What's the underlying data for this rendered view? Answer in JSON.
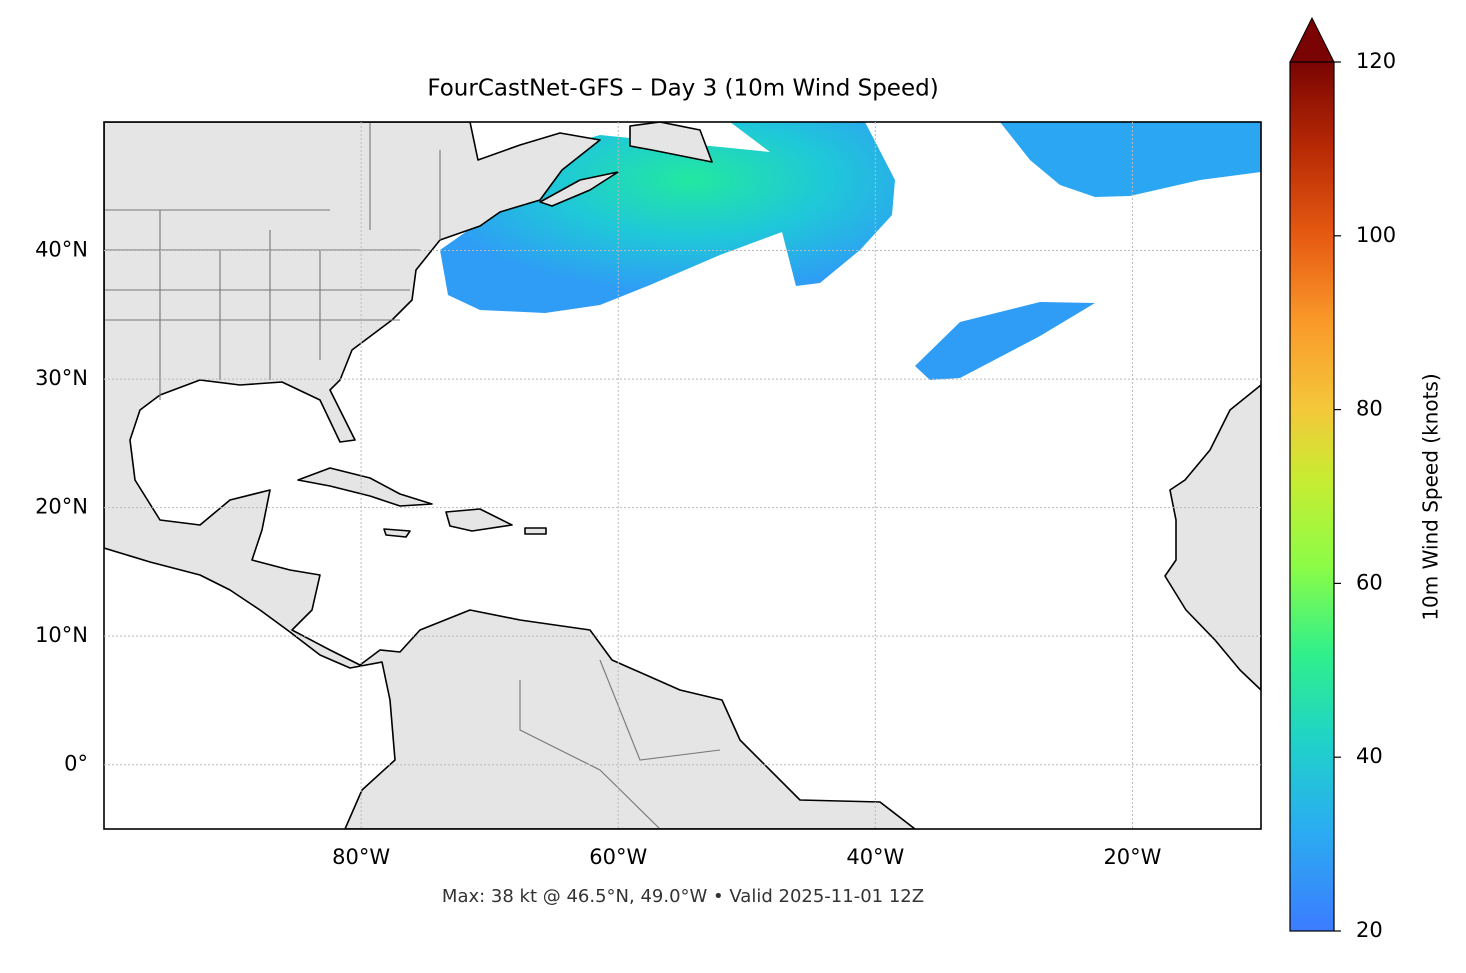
{
  "title": "FourCastNet-GFS – Day 3 (10m Wind Speed)",
  "footnote": "Max: 38 kt @ 46.5°N, 49.0°W • Valid 2025-11-01 12Z",
  "map": {
    "xlim": [
      -100,
      -10
    ],
    "ylim": [
      -5,
      50
    ],
    "grid": true,
    "xticks": [
      {
        "value": -80,
        "label": "80°W"
      },
      {
        "value": -60,
        "label": "60°W"
      },
      {
        "value": -40,
        "label": "40°W"
      },
      {
        "value": -20,
        "label": "20°W"
      }
    ],
    "yticks": [
      {
        "value": 0,
        "label": "0°"
      },
      {
        "value": 10,
        "label": "10°N"
      },
      {
        "value": 20,
        "label": "20°N"
      },
      {
        "value": 30,
        "label": "30°N"
      },
      {
        "value": 40,
        "label": "40°N"
      }
    ]
  },
  "colorbar": {
    "label": "10m Wind Speed (knots)",
    "lim": [
      20,
      120
    ],
    "ticks": [
      20,
      40,
      60,
      80,
      100,
      120
    ],
    "extend": "max"
  }
}
